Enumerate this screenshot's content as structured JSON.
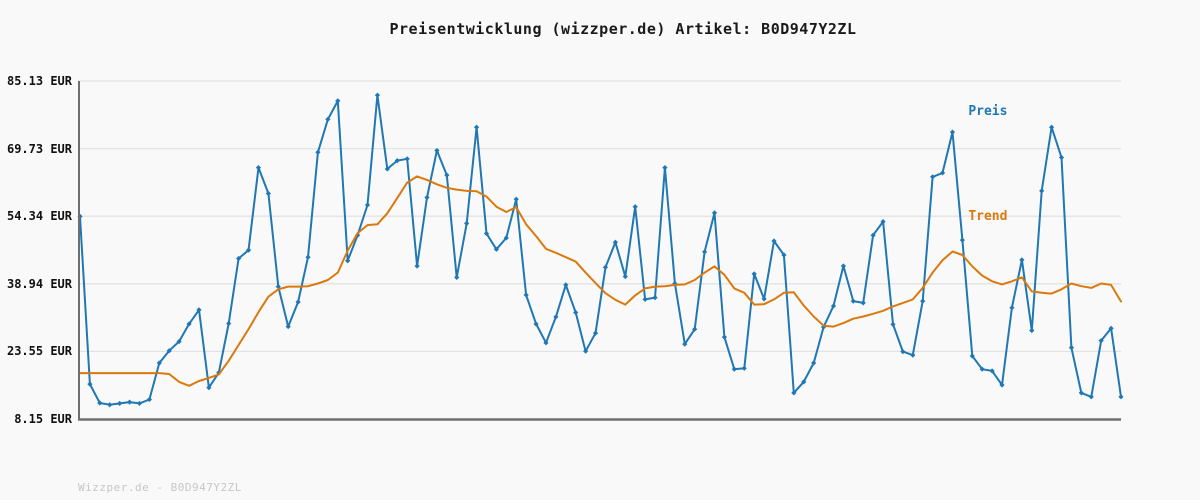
{
  "title": "Preisentwicklung (wizzper.de) Artikel: B0D947Y2ZL",
  "watermark": "Wizzper.de - B0D947Y2ZL",
  "legend": {
    "position": "top-right",
    "items": [
      {
        "label": "Preis",
        "color": "#1f77b4"
      },
      {
        "label": "Trend",
        "color": "#d9790e"
      }
    ]
  },
  "y_axis": {
    "tick_labels": [
      "85.13 EUR",
      "69.73 EUR",
      "54.34 EUR",
      "38.94 EUR",
      "23.55 EUR",
      "8.15 EUR"
    ],
    "tick_values": [
      85.13,
      69.73,
      54.34,
      38.94,
      23.55,
      8.15
    ],
    "min": 8.15,
    "max": 85.13,
    "unit": "EUR"
  },
  "x_axis": {
    "tick_labels": [],
    "note": "no visible x tick labels"
  },
  "colors": {
    "background": "#f9f9f9",
    "axis": "#707070",
    "gridline": "#e3e3e3",
    "title_text": "#1a1a1a",
    "tick_text": "#111111",
    "watermark_text": "#c6c6c6"
  },
  "chart_data": {
    "type": "line",
    "title": "Preisentwicklung (wizzper.de) Artikel: B0D947Y2ZL",
    "xlabel": "",
    "ylabel": "EUR",
    "ylim": [
      8.15,
      85.13
    ],
    "grid": true,
    "legend_position": "top-right",
    "point_count": 106,
    "series": [
      {
        "name": "Preis",
        "color": "#1f77b4",
        "markers": true,
        "values": [
          54.3,
          16.1,
          11.8,
          11.4,
          11.7,
          12.0,
          11.7,
          12.6,
          20.9,
          23.7,
          25.8,
          29.8,
          33.0,
          15.3,
          18.7,
          29.9,
          44.7,
          46.6,
          65.4,
          59.5,
          38.3,
          29.2,
          34.8,
          45.0,
          68.9,
          76.4,
          80.6,
          44.2,
          50.0,
          56.9,
          81.9,
          65.1,
          67.0,
          67.4,
          43.0,
          58.6,
          69.3,
          63.7,
          40.4,
          52.7,
          74.6,
          50.4,
          46.8,
          49.4,
          58.2,
          36.4,
          29.8,
          25.5,
          31.4,
          38.7,
          32.4,
          23.6,
          27.7,
          42.7,
          48.4,
          40.6,
          56.5,
          35.4,
          35.8,
          65.4,
          39.0,
          25.2,
          28.6,
          46.2,
          55.1,
          26.8,
          19.5,
          19.7,
          41.2,
          35.5,
          48.7,
          45.5,
          14.1,
          16.6,
          20.9,
          29.1,
          33.9,
          43.0,
          35.0,
          34.6,
          50.0,
          53.1,
          29.7,
          23.5,
          22.7,
          35.0,
          63.3,
          64.2,
          73.5,
          48.9,
          22.5,
          19.5,
          19.1,
          15.9,
          33.5,
          44.4,
          28.3,
          60.1,
          74.6,
          67.7,
          24.4,
          14.1,
          13.2,
          26.0,
          28.8,
          13.2
        ]
      },
      {
        "name": "Trend",
        "color": "#d9790e",
        "markers": false,
        "values": [
          18.6,
          18.6,
          18.6,
          18.6,
          18.6,
          18.6,
          18.6,
          18.6,
          18.6,
          18.4,
          16.6,
          15.7,
          16.8,
          17.5,
          18.3,
          21.4,
          25.0,
          28.6,
          32.5,
          36.0,
          37.7,
          38.3,
          38.3,
          38.4,
          39.0,
          39.8,
          41.5,
          46.5,
          50.5,
          52.3,
          52.5,
          55.0,
          58.5,
          62.0,
          63.4,
          62.6,
          61.6,
          60.8,
          60.4,
          60.1,
          60.0,
          58.8,
          56.5,
          55.3,
          56.4,
          52.5,
          49.8,
          46.9,
          46.0,
          45.0,
          44.0,
          41.5,
          39.1,
          36.8,
          35.3,
          34.2,
          36.3,
          37.9,
          38.3,
          38.4,
          38.7,
          38.8,
          39.8,
          41.5,
          42.9,
          41.0,
          37.9,
          36.9,
          34.2,
          34.3,
          35.4,
          36.9,
          37.0,
          34.0,
          31.5,
          29.4,
          29.2,
          30.0,
          31.0,
          31.5,
          32.1,
          32.8,
          33.8,
          34.6,
          35.4,
          38.0,
          41.5,
          44.3,
          46.3,
          45.5,
          42.9,
          40.8,
          39.5,
          38.8,
          39.5,
          40.4,
          37.2,
          36.9,
          36.7,
          37.7,
          39.0,
          38.4,
          38.0,
          39.0,
          38.7,
          34.9
        ]
      }
    ]
  }
}
